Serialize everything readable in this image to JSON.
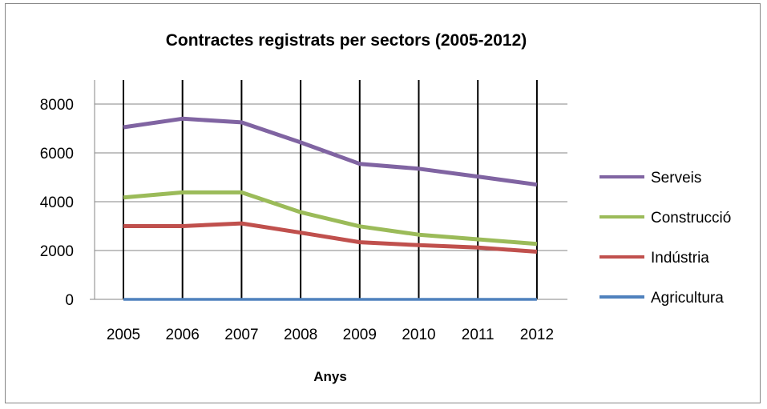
{
  "chart_data": {
    "type": "line",
    "title": "Contractes registrats per sectors (2005-2012)",
    "xlabel": "Anys",
    "ylabel": "",
    "categories": [
      "2005",
      "2006",
      "2007",
      "2008",
      "2009",
      "2010",
      "2011",
      "2012"
    ],
    "ylim": [
      0,
      8000
    ],
    "yticks": [
      "0",
      "2000",
      "4000",
      "6000",
      "8000"
    ],
    "grid": "horizontal and vertical",
    "legend_position": "right",
    "series": [
      {
        "name": "Serveis",
        "color": "#8064A2",
        "values": [
          7050,
          7400,
          7250,
          6430,
          5550,
          5350,
          5030,
          4700
        ]
      },
      {
        "name": "Construcció",
        "color": "#9BBB59",
        "values": [
          4170,
          4380,
          4380,
          3570,
          2990,
          2650,
          2460,
          2270
        ]
      },
      {
        "name": "Indústria",
        "color": "#C0504D",
        "values": [
          3000,
          3000,
          3110,
          2730,
          2340,
          2220,
          2120,
          1950
        ]
      },
      {
        "name": "Agricultura",
        "color": "#4F81BD",
        "values": [
          0,
          0,
          0,
          0,
          0,
          0,
          0,
          0
        ]
      }
    ]
  }
}
